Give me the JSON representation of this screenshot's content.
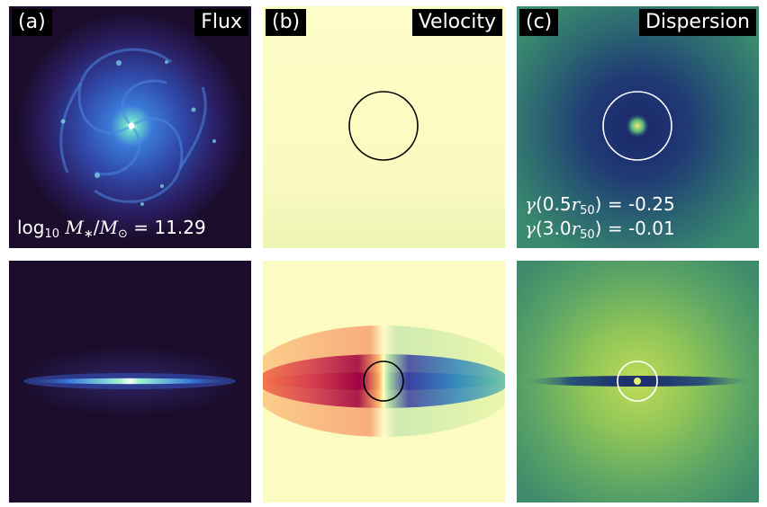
{
  "panels": {
    "a": {
      "letter": "(a)",
      "title": "Flux",
      "mass_prefix": "log",
      "mass_sub": "10",
      "mass_eq": "= 11.29"
    },
    "b": {
      "letter": "(b)",
      "title": "Velocity"
    },
    "c": {
      "letter": "(c)",
      "title": "Dispersion",
      "gamma1_coef": "(0.5",
      "gamma1_val": ") = -0.25",
      "gamma2_coef": "(3.0",
      "gamma2_val": ") = -0.01"
    }
  },
  "colors": {
    "flux_bg": "#1a0c2a",
    "flux_core": "#e8fff0",
    "flux_arm": "#3b6fd0",
    "velocity_bg": "#fbfbc2",
    "velocity_red": "#9e0142",
    "velocity_blue": "#3c3fa0",
    "dispersion_bg_top": "#2a6870",
    "dispersion_bg_bottom": "#4f9e6a",
    "dispersion_disk": "#1e2f6b",
    "circle_dark": "#000000",
    "circle_light": "#ffffff"
  }
}
